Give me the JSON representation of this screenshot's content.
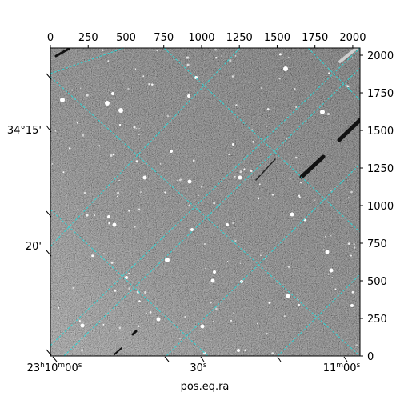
{
  "axes": {
    "top_x_ticks": [
      "0",
      "250",
      "500",
      "750",
      "1000",
      "1250",
      "1500",
      "1750",
      "2000"
    ],
    "right_y_ticks": [
      "0",
      "250",
      "500",
      "750",
      "1000",
      "1250",
      "1500",
      "1750",
      "2000"
    ],
    "left_dec_labels": [
      "34°15'",
      "20'"
    ],
    "bottom_ra_labels": [
      {
        "h": "23",
        "hu": "h",
        "m": "10",
        "mu": "m",
        "s": "00",
        "su": "s"
      },
      {
        "s": "30",
        "su": "s"
      },
      {
        "m": "11",
        "mu": "m",
        "s": "00",
        "su": "s"
      }
    ],
    "xlabel": "pos.eq.ra"
  },
  "image": {
    "style": "grayscale astronomical image",
    "grid_color": "#2fd6d6",
    "pixel_range": [
      0,
      2048
    ]
  }
}
